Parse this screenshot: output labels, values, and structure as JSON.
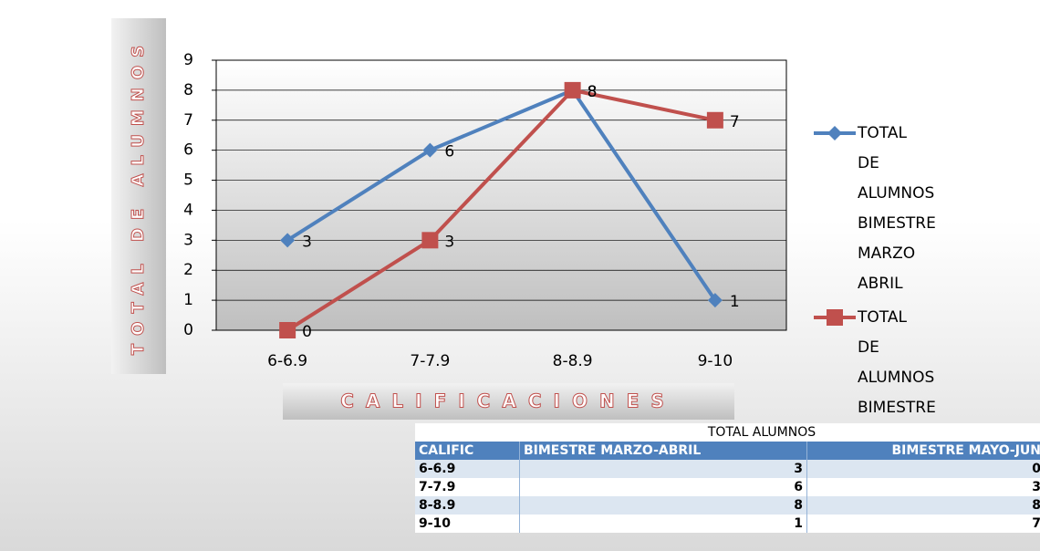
{
  "chart_data": {
    "type": "line",
    "y_label": "TOTAL DE ALUMNOS",
    "x_label": "CALIFICACIONES",
    "categories": [
      "6-6.9",
      "7-7.9",
      "8-8.9",
      "9-10"
    ],
    "series": [
      {
        "name": "TOTAL DE ALUMNOS BIMESTRE MARZO ABRIL",
        "color": "#4f81bd",
        "marker": "diamond",
        "values": [
          3,
          6,
          8,
          1
        ]
      },
      {
        "name": "TOTAL DE ALUMNOS BIMESTRE MAYO-JUNIO",
        "color": "#c0504d",
        "marker": "square",
        "values": [
          0,
          3,
          8,
          7
        ]
      }
    ],
    "ylim": [
      0,
      9
    ],
    "yticks": [
      0,
      1,
      2,
      3,
      4,
      5,
      6,
      7,
      8,
      9
    ],
    "grid": true,
    "legend": "right"
  },
  "table": {
    "title": "TOTAL ALUMNOS",
    "headers": [
      "CALIFIC",
      "BIMESTRE MARZO-ABRIL",
      "BIMESTRE MAYO-JUN"
    ],
    "rows": [
      [
        "6-6.9",
        3,
        0
      ],
      [
        "7-7.9",
        6,
        3
      ],
      [
        "8-8.9",
        8,
        8
      ],
      [
        "9-10",
        1,
        7
      ]
    ]
  }
}
